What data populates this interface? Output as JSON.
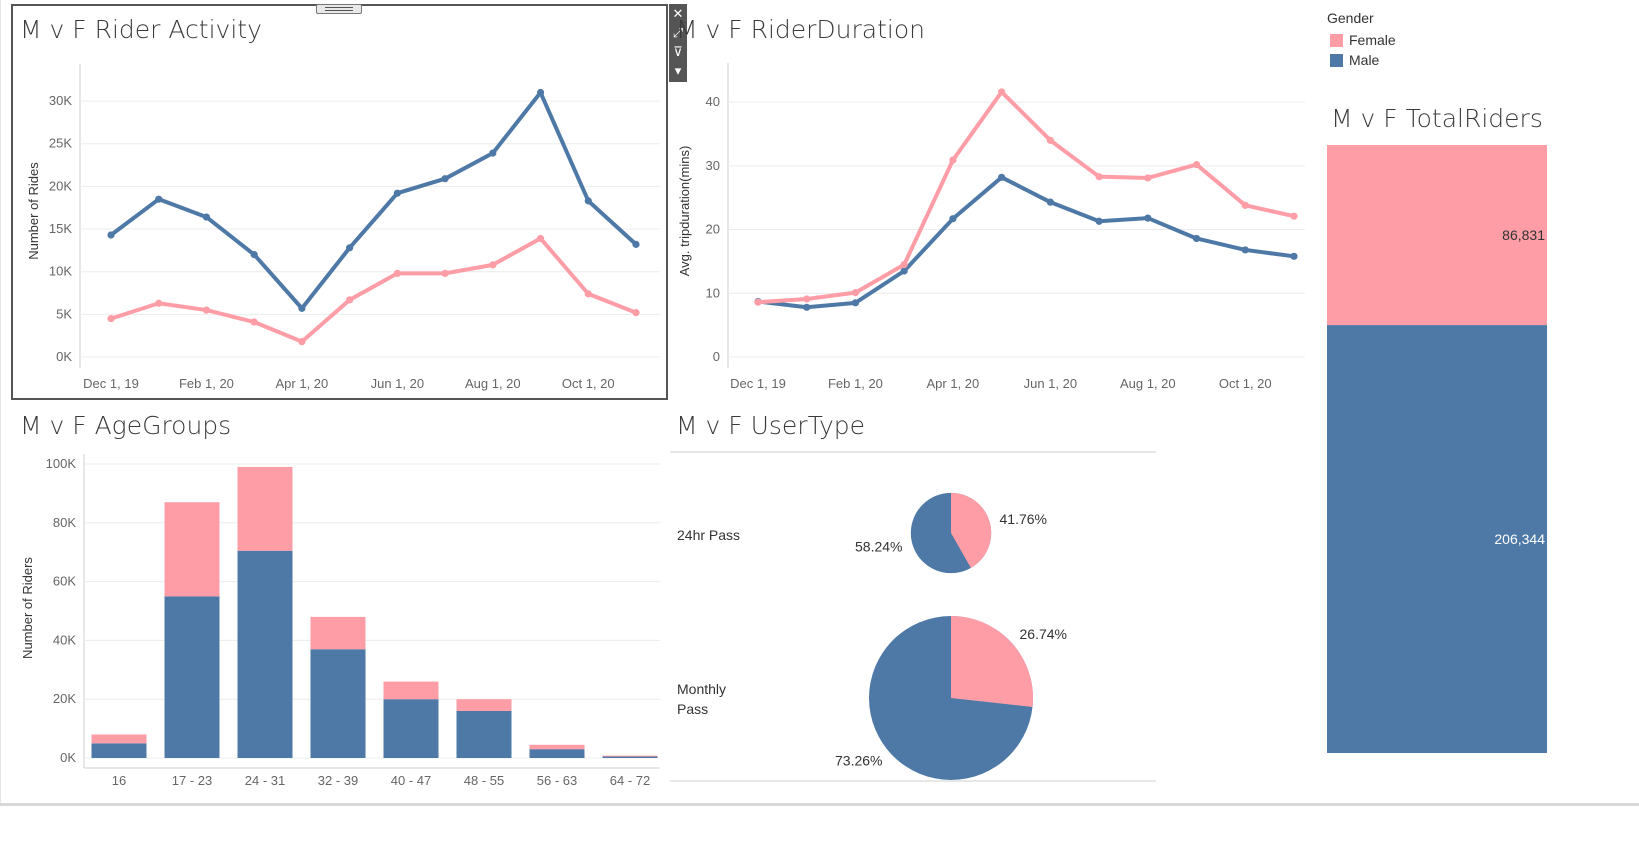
{
  "titles": {
    "activity": "M v F Rider Activity",
    "duration": "M v F RiderDuration",
    "agegroups": "M v F AgeGroups",
    "usertype": "M v F UserType",
    "total": "M v F TotalRiders"
  },
  "toolbar": {
    "close": "✕",
    "popout": "⤢",
    "filter": "⊽",
    "more": "▾"
  },
  "legend": {
    "title": "Gender",
    "female": "Female",
    "male": "Male"
  },
  "colors": {
    "female": "#ff9da7",
    "male": "#4e79a7"
  },
  "chart_data": [
    {
      "type": "line",
      "title": "M v F Rider Activity",
      "xlabel": "",
      "ylabel": "Number of Rides",
      "x": [
        "Dec 1, 19",
        "Jan 1, 20",
        "Feb 1, 20",
        "Mar 1, 20",
        "Apr 1, 20",
        "May 1, 20",
        "Jun 1, 20",
        "Jul 1, 20",
        "Aug 1, 20",
        "Sep 1, 20",
        "Oct 1, 20",
        "Nov 1, 20"
      ],
      "x_ticks": [
        "Dec 1, 19",
        "Feb 1, 20",
        "Apr 1, 20",
        "Jun 1, 20",
        "Aug 1, 20",
        "Oct 1, 20"
      ],
      "y_ticks": [
        "0K",
        "5K",
        "10K",
        "15K",
        "20K",
        "25K",
        "30K"
      ],
      "ylim": [
        0,
        32000
      ],
      "series": [
        {
          "name": "Male",
          "values": [
            14300,
            18500,
            16400,
            12000,
            5700,
            12800,
            19200,
            20900,
            23900,
            31000,
            18300,
            13200
          ]
        },
        {
          "name": "Female",
          "values": [
            4500,
            6300,
            5500,
            4100,
            1800,
            6700,
            9800,
            9800,
            10800,
            13900,
            7400,
            5200
          ]
        }
      ]
    },
    {
      "type": "line",
      "title": "M v F RiderDuration",
      "xlabel": "",
      "ylabel": "Avg. tripduration(mins)",
      "x": [
        "Dec 1, 19",
        "Jan 1, 20",
        "Feb 1, 20",
        "Mar 1, 20",
        "Apr 1, 20",
        "May 1, 20",
        "Jun 1, 20",
        "Jul 1, 20",
        "Aug 1, 20",
        "Sep 1, 20",
        "Oct 1, 20",
        "Nov 1, 20"
      ],
      "x_ticks": [
        "Dec 1, 19",
        "Feb 1, 20",
        "Apr 1, 20",
        "Jun 1, 20",
        "Aug 1, 20",
        "Oct 1, 20"
      ],
      "y_ticks": [
        "0",
        "10",
        "20",
        "30",
        "40"
      ],
      "ylim": [
        0,
        43
      ],
      "series": [
        {
          "name": "Male",
          "values": [
            8.7,
            7.8,
            8.5,
            13.5,
            21.7,
            28.2,
            24.3,
            21.3,
            21.8,
            18.6,
            16.8,
            15.8
          ]
        },
        {
          "name": "Female",
          "values": [
            8.6,
            9.1,
            10.1,
            14.5,
            30.9,
            41.6,
            34.0,
            28.3,
            28.1,
            30.2,
            23.8,
            22.1
          ]
        }
      ]
    },
    {
      "type": "bar",
      "stacked": true,
      "title": "M v F AgeGroups",
      "xlabel": "",
      "ylabel": "Number of Riders",
      "categories": [
        "16",
        "17 - 23",
        "24 - 31",
        "32 - 39",
        "40 - 47",
        "48 - 55",
        "56 - 63",
        "64 - 72"
      ],
      "y_ticks": [
        "0K",
        "20K",
        "40K",
        "60K",
        "80K",
        "100K"
      ],
      "ylim": [
        0,
        100000
      ],
      "series": [
        {
          "name": "Male",
          "values": [
            5000,
            55000,
            70500,
            37000,
            20000,
            16000,
            3000,
            500
          ]
        },
        {
          "name": "Female",
          "values": [
            3000,
            32000,
            28500,
            11000,
            6000,
            4000,
            1500,
            300
          ]
        }
      ]
    },
    {
      "type": "pie",
      "title": "M v F UserType",
      "rows": [
        {
          "label": "24hr Pass",
          "female_pct": 41.76,
          "male_pct": 58.24,
          "female_label": "41.76%",
          "male_label": "58.24%",
          "relative_size": 0.49
        },
        {
          "label": "Monthly Pass",
          "label_lines": [
            "Monthly",
            "Pass"
          ],
          "female_pct": 26.74,
          "male_pct": 73.26,
          "female_label": "26.74%",
          "male_label": "73.26%",
          "relative_size": 1.0
        }
      ]
    },
    {
      "type": "bar",
      "stacked": true,
      "title": "M v F TotalRiders",
      "series": [
        {
          "name": "Female",
          "value": 86831,
          "label": "86,831"
        },
        {
          "name": "Male",
          "value": 206344,
          "label": "206,344"
        }
      ]
    }
  ]
}
